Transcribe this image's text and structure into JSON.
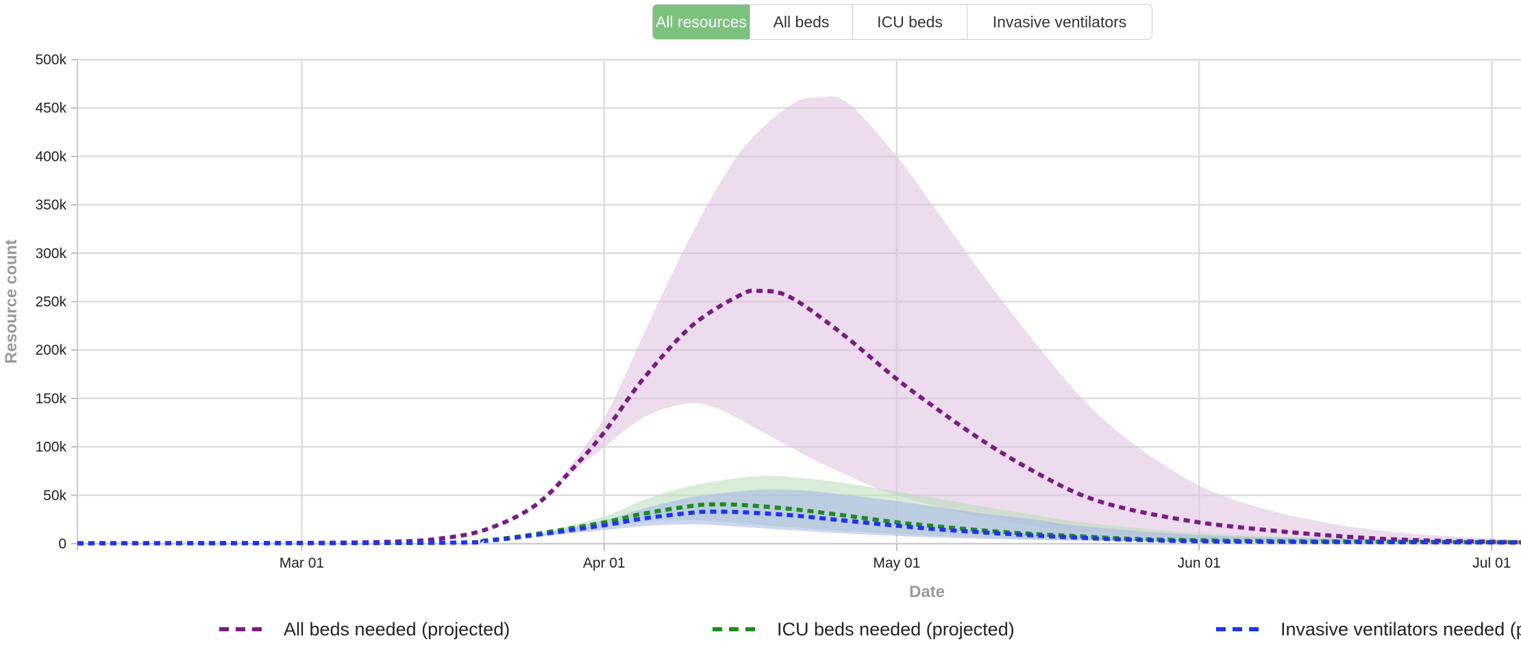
{
  "tabs": [
    {
      "label": "All resources",
      "active": true
    },
    {
      "label": "All beds",
      "active": false
    },
    {
      "label": "ICU beds",
      "active": false
    },
    {
      "label": "Invasive ventilators",
      "active": false
    }
  ],
  "colors": {
    "tab_active": "#7cc17e",
    "all_beds": "#7b1a82",
    "icu_beds": "#1e8c1e",
    "ventilators": "#1d34f0",
    "all_beds_band": "#dcbfe0",
    "icu_band": "#b8dcb8",
    "vent_band": "#a6b4ea",
    "grid": "#dddddd"
  },
  "chart_data": {
    "type": "area",
    "title": "",
    "xlabel": "Date",
    "ylabel": "Resource count",
    "x_range": [
      "2020-02-07",
      "2020-07-04"
    ],
    "ylim": [
      0,
      500000
    ],
    "y_ticks": [
      0,
      50000,
      100000,
      150000,
      200000,
      250000,
      300000,
      350000,
      400000,
      450000,
      500000
    ],
    "y_tick_labels": [
      "0",
      "50k",
      "100k",
      "150k",
      "200k",
      "250k",
      "300k",
      "350k",
      "400k",
      "450k",
      "500k"
    ],
    "x_ticks": [
      "2020-03-01",
      "2020-04-01",
      "2020-05-01",
      "2020-06-01",
      "2020-07-01"
    ],
    "x_tick_labels": [
      "Mar 01",
      "Apr 01",
      "May 01",
      "Jun 01",
      "Jul 01"
    ],
    "grid": true,
    "legend_position": "bottom",
    "series": [
      {
        "name": "All beds needed (projected)",
        "color": "#7b1a82",
        "style": "dashed",
        "points": [
          [
            "2020-02-07",
            500
          ],
          [
            "2020-03-01",
            800
          ],
          [
            "2020-03-10",
            2000
          ],
          [
            "2020-03-15",
            5000
          ],
          [
            "2020-03-20",
            15000
          ],
          [
            "2020-03-25",
            40000
          ],
          [
            "2020-03-29",
            80000
          ],
          [
            "2020-04-01",
            115000
          ],
          [
            "2020-04-05",
            170000
          ],
          [
            "2020-04-10",
            225000
          ],
          [
            "2020-04-15",
            257000
          ],
          [
            "2020-04-17",
            261000
          ],
          [
            "2020-04-20",
            255000
          ],
          [
            "2020-04-25",
            220000
          ],
          [
            "2020-05-01",
            170000
          ],
          [
            "2020-05-05",
            140000
          ],
          [
            "2020-05-10",
            105000
          ],
          [
            "2020-05-15",
            75000
          ],
          [
            "2020-05-20",
            50000
          ],
          [
            "2020-05-25",
            35000
          ],
          [
            "2020-06-01",
            22000
          ],
          [
            "2020-06-08",
            14000
          ],
          [
            "2020-06-15",
            8000
          ],
          [
            "2020-06-22",
            4000
          ],
          [
            "2020-07-01",
            2000
          ],
          [
            "2020-07-04",
            1500
          ]
        ]
      },
      {
        "name": "ICU beds needed (projected)",
        "color": "#1e8c1e",
        "style": "dashed",
        "points": [
          [
            "2020-02-07",
            300
          ],
          [
            "2020-03-15",
            1000
          ],
          [
            "2020-03-20",
            3500
          ],
          [
            "2020-03-25",
            10000
          ],
          [
            "2020-04-01",
            22000
          ],
          [
            "2020-04-05",
            31000
          ],
          [
            "2020-04-10",
            39000
          ],
          [
            "2020-04-12",
            40500
          ],
          [
            "2020-04-15",
            40000
          ],
          [
            "2020-04-20",
            36000
          ],
          [
            "2020-04-25",
            30000
          ],
          [
            "2020-05-01",
            22000
          ],
          [
            "2020-05-05",
            18000
          ],
          [
            "2020-05-10",
            13500
          ],
          [
            "2020-05-15",
            10000
          ],
          [
            "2020-05-20",
            7500
          ],
          [
            "2020-05-25",
            5000
          ],
          [
            "2020-06-01",
            3500
          ],
          [
            "2020-06-10",
            2500
          ],
          [
            "2020-06-20",
            2000
          ],
          [
            "2020-07-01",
            1500
          ],
          [
            "2020-07-04",
            1500
          ]
        ]
      },
      {
        "name": "Invasive ventilators needed (projected)",
        "color": "#1d34f0",
        "style": "dashed",
        "points": [
          [
            "2020-02-07",
            300
          ],
          [
            "2020-03-15",
            900
          ],
          [
            "2020-03-20",
            3000
          ],
          [
            "2020-03-25",
            9000
          ],
          [
            "2020-04-01",
            19000
          ],
          [
            "2020-04-05",
            26000
          ],
          [
            "2020-04-10",
            32000
          ],
          [
            "2020-04-12",
            33000
          ],
          [
            "2020-04-15",
            32500
          ],
          [
            "2020-04-20",
            29500
          ],
          [
            "2020-04-25",
            24500
          ],
          [
            "2020-05-01",
            18500
          ],
          [
            "2020-05-05",
            15000
          ],
          [
            "2020-05-10",
            11500
          ],
          [
            "2020-05-15",
            8500
          ],
          [
            "2020-05-20",
            6000
          ],
          [
            "2020-05-25",
            4000
          ],
          [
            "2020-06-01",
            2500
          ],
          [
            "2020-06-10",
            1800
          ],
          [
            "2020-06-20",
            1500
          ],
          [
            "2020-07-01",
            1200
          ],
          [
            "2020-07-04",
            1000
          ]
        ]
      }
    ],
    "bands": [
      {
        "series": "All beds needed (projected)",
        "color": "#dcbfe0",
        "upper": [
          [
            "2020-03-27",
            60000
          ],
          [
            "2020-04-01",
            130000
          ],
          [
            "2020-04-05",
            215000
          ],
          [
            "2020-04-10",
            320000
          ],
          [
            "2020-04-15",
            405000
          ],
          [
            "2020-04-20",
            452000
          ],
          [
            "2020-04-23",
            461000
          ],
          [
            "2020-04-26",
            455000
          ],
          [
            "2020-05-01",
            400000
          ],
          [
            "2020-05-05",
            345000
          ],
          [
            "2020-05-10",
            275000
          ],
          [
            "2020-05-15",
            210000
          ],
          [
            "2020-05-20",
            150000
          ],
          [
            "2020-05-25",
            105000
          ],
          [
            "2020-06-01",
            60000
          ],
          [
            "2020-06-08",
            35000
          ],
          [
            "2020-06-15",
            20000
          ],
          [
            "2020-06-22",
            11000
          ],
          [
            "2020-07-01",
            5000
          ],
          [
            "2020-07-04",
            3000
          ]
        ],
        "lower": [
          [
            "2020-03-27",
            60000
          ],
          [
            "2020-04-01",
            100000
          ],
          [
            "2020-04-05",
            130000
          ],
          [
            "2020-04-09",
            144000
          ],
          [
            "2020-04-12",
            142000
          ],
          [
            "2020-04-15",
            128000
          ],
          [
            "2020-04-20",
            100000
          ],
          [
            "2020-04-25",
            75000
          ],
          [
            "2020-05-01",
            50000
          ],
          [
            "2020-05-10",
            27000
          ],
          [
            "2020-05-20",
            12000
          ],
          [
            "2020-06-01",
            5000
          ],
          [
            "2020-06-15",
            2000
          ],
          [
            "2020-07-01",
            1000
          ],
          [
            "2020-07-04",
            1000
          ]
        ]
      },
      {
        "series": "ICU beds needed (projected)",
        "color": "#b8dcb8",
        "upper": [
          [
            "2020-03-25",
            10000
          ],
          [
            "2020-04-01",
            28000
          ],
          [
            "2020-04-05",
            45000
          ],
          [
            "2020-04-10",
            60000
          ],
          [
            "2020-04-15",
            68000
          ],
          [
            "2020-04-18",
            70000
          ],
          [
            "2020-04-22",
            67000
          ],
          [
            "2020-04-26",
            62000
          ],
          [
            "2020-05-01",
            54000
          ],
          [
            "2020-05-05",
            47000
          ],
          [
            "2020-05-10",
            38000
          ],
          [
            "2020-05-15",
            30000
          ],
          [
            "2020-05-20",
            22000
          ],
          [
            "2020-06-01",
            11000
          ],
          [
            "2020-06-15",
            6000
          ],
          [
            "2020-07-04",
            3000
          ]
        ],
        "lower": [
          [
            "2020-03-25",
            8000
          ],
          [
            "2020-04-01",
            17000
          ],
          [
            "2020-04-05",
            22000
          ],
          [
            "2020-04-10",
            24000
          ],
          [
            "2020-04-15",
            21000
          ],
          [
            "2020-04-20",
            17000
          ],
          [
            "2020-05-01",
            10000
          ],
          [
            "2020-05-10",
            6000
          ],
          [
            "2020-05-20",
            3500
          ],
          [
            "2020-06-01",
            2000
          ],
          [
            "2020-07-04",
            800
          ]
        ]
      },
      {
        "series": "Invasive ventilators needed (projected)",
        "color": "#a6b4ea",
        "upper": [
          [
            "2020-03-25",
            9000
          ],
          [
            "2020-04-01",
            24000
          ],
          [
            "2020-04-05",
            36000
          ],
          [
            "2020-04-10",
            48000
          ],
          [
            "2020-04-15",
            54000
          ],
          [
            "2020-04-18",
            56000
          ],
          [
            "2020-04-22",
            54500
          ],
          [
            "2020-04-26",
            50000
          ],
          [
            "2020-05-01",
            44000
          ],
          [
            "2020-05-05",
            38000
          ],
          [
            "2020-05-10",
            31000
          ],
          [
            "2020-05-15",
            25000
          ],
          [
            "2020-05-20",
            18000
          ],
          [
            "2020-06-01",
            9000
          ],
          [
            "2020-06-15",
            5000
          ],
          [
            "2020-07-04",
            2500
          ]
        ],
        "lower": [
          [
            "2020-03-25",
            7000
          ],
          [
            "2020-04-01",
            14000
          ],
          [
            "2020-04-05",
            18000
          ],
          [
            "2020-04-10",
            20000
          ],
          [
            "2020-04-15",
            17500
          ],
          [
            "2020-04-20",
            14000
          ],
          [
            "2020-05-01",
            8000
          ],
          [
            "2020-05-10",
            5000
          ],
          [
            "2020-05-20",
            3000
          ],
          [
            "2020-06-01",
            1800
          ],
          [
            "2020-07-04",
            600
          ]
        ]
      }
    ]
  }
}
